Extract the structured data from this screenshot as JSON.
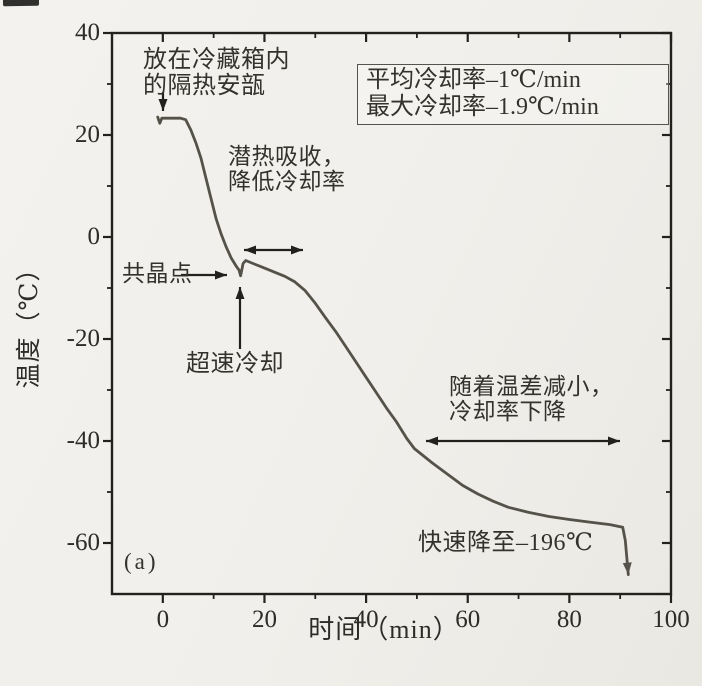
{
  "chart_data": {
    "type": "line",
    "title": "",
    "panel_label": "(a)",
    "xlabel": "时间（min）",
    "ylabel": "温度（℃）",
    "xlim": [
      -10,
      100
    ],
    "ylim": [
      -70,
      40
    ],
    "grid": false,
    "frame": "full-box",
    "x_major_ticks": [
      0,
      20,
      40,
      60,
      80,
      100
    ],
    "x_minor_ticks": [
      10,
      30,
      50,
      70,
      90
    ],
    "y_major_ticks": [
      40,
      20,
      0,
      -20,
      -40,
      -60
    ],
    "y_minor_ticks": [
      30,
      10,
      -10,
      -30,
      -50
    ],
    "x_tick_labels": [
      "0",
      "20",
      "40",
      "60",
      "80",
      "100"
    ],
    "y_tick_labels": [
      "40",
      "20",
      "0",
      "-20",
      "-40",
      "-60"
    ],
    "series": [
      {
        "name": "cooling-curve",
        "x": [
          -1.0,
          -0.6,
          -0.2,
          0.5,
          3.5,
          4.5,
          5.5,
          6.5,
          7.5,
          8.5,
          9.5,
          10.5,
          11.5,
          12.5,
          13.5,
          14.5,
          15.0,
          15.3,
          15.8,
          16.3,
          18,
          20,
          22,
          24,
          26,
          28,
          30,
          32,
          34,
          36,
          38,
          40,
          42,
          44,
          46,
          48,
          49.5,
          53,
          56,
          59,
          62,
          65,
          68,
          72,
          76,
          80,
          84,
          88,
          90.5,
          91.0,
          91.6
        ],
        "y": [
          23.5,
          22.3,
          23.3,
          23.3,
          23.3,
          23.0,
          21.0,
          18.5,
          15.5,
          11.5,
          7.5,
          3.5,
          0.5,
          -2.0,
          -4.2,
          -5.8,
          -6.5,
          -7.6,
          -5.2,
          -4.6,
          -5.3,
          -6.1,
          -6.9,
          -7.7,
          -8.8,
          -10.5,
          -13.0,
          -15.8,
          -18.5,
          -21.5,
          -24.5,
          -27.5,
          -30.5,
          -33.5,
          -36.3,
          -39.5,
          -41.5,
          -44.3,
          -46.5,
          -48.7,
          -50.4,
          -51.8,
          -53.0,
          -54.0,
          -54.8,
          -55.4,
          -55.9,
          -56.4,
          -56.9,
          -59.5,
          -66.2
        ],
        "end_arrow": true
      }
    ],
    "legend": [
      "平均冷却率–1℃/min",
      "最大冷却率–1.9℃/min"
    ],
    "annotations": {
      "ampoule": "放在冷藏箱内\n的隔热安瓿",
      "latent_heat": "潜热吸收，\n降低冷却率",
      "eutectic": "共晶点",
      "supercool": "超速冷却",
      "temp_diff": "随着温差减小，\n冷却率下降",
      "rapid_drop": "快速降至–196℃"
    },
    "colors": {
      "curve": "#545249",
      "axis": "#22211e",
      "text": "#34322d",
      "paper": "#f1efeb"
    }
  }
}
